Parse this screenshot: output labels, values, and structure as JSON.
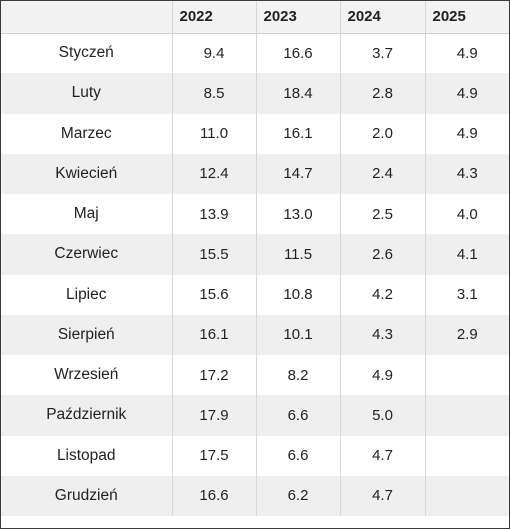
{
  "table": {
    "headers": [
      "",
      "2022",
      "2023",
      "2024",
      "2025"
    ],
    "rows": [
      {
        "month": "Styczeń",
        "values": [
          "9.4",
          "16.6",
          "3.7",
          "4.9"
        ]
      },
      {
        "month": "Luty",
        "values": [
          "8.5",
          "18.4",
          "2.8",
          "4.9"
        ]
      },
      {
        "month": "Marzec",
        "values": [
          "11.0",
          "16.1",
          "2.0",
          "4.9"
        ]
      },
      {
        "month": "Kwiecień",
        "values": [
          "12.4",
          "14.7",
          "2.4",
          "4.3"
        ]
      },
      {
        "month": "Maj",
        "values": [
          "13.9",
          "13.0",
          "2.5",
          "4.0"
        ]
      },
      {
        "month": "Czerwiec",
        "values": [
          "15.5",
          "11.5",
          "2.6",
          "4.1"
        ]
      },
      {
        "month": "Lipiec",
        "values": [
          "15.6",
          "10.8",
          "4.2",
          "3.1"
        ]
      },
      {
        "month": "Sierpień",
        "values": [
          "16.1",
          "10.1",
          "4.3",
          "2.9"
        ]
      },
      {
        "month": "Wrzesień",
        "values": [
          "17.2",
          "8.2",
          "4.9",
          ""
        ]
      },
      {
        "month": "Październik",
        "values": [
          "17.9",
          "6.6",
          "5.0",
          ""
        ]
      },
      {
        "month": "Listopad",
        "values": [
          "17.5",
          "6.6",
          "4.7",
          ""
        ]
      },
      {
        "month": "Grudzień",
        "values": [
          "16.6",
          "6.2",
          "4.7",
          ""
        ]
      }
    ]
  }
}
